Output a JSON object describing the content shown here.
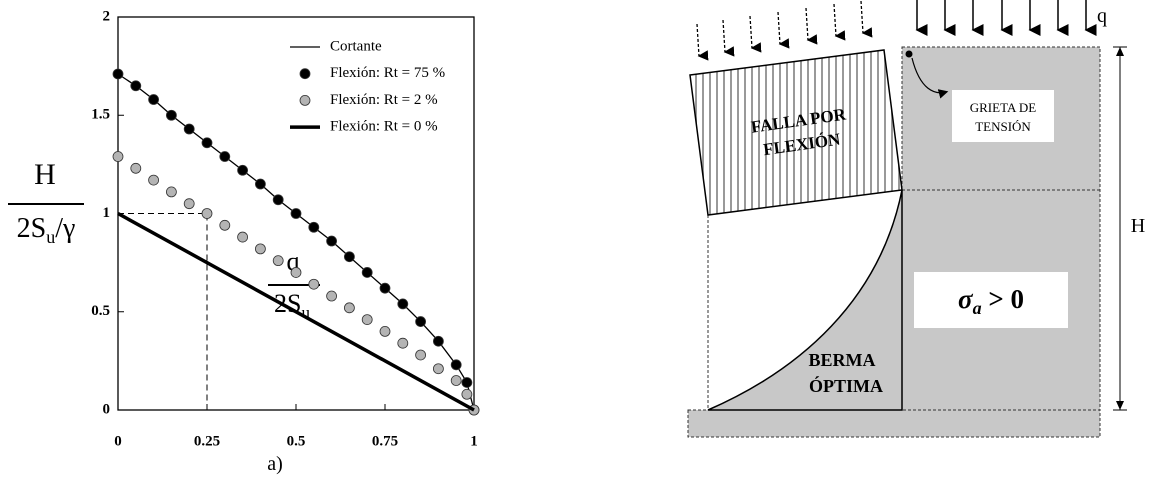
{
  "chart_data": {
    "type": "line",
    "caption": "a)",
    "y_label": {
      "numerator": "H",
      "denominator": "2S",
      "denominator_subscript": "u",
      "denominator_suffix": "/γ"
    },
    "x_label": {
      "numerator": "q",
      "denominator": "2S",
      "denominator_subscript": "u"
    },
    "xlim": [
      0,
      1
    ],
    "ylim": [
      0,
      2
    ],
    "xticks": [
      0,
      0.25,
      0.5,
      0.75,
      1
    ],
    "yticks": [
      0,
      0.5,
      1,
      1.5,
      2
    ],
    "reference_line": {
      "x": [
        0,
        0.25,
        0.25
      ],
      "values": [
        1,
        1,
        0
      ]
    },
    "series": [
      {
        "name": "Cortante",
        "color": "#000000",
        "marker": "none",
        "x": [
          0,
          0.05,
          0.1,
          0.15,
          0.2,
          0.25,
          0.3,
          0.35,
          0.4,
          0.45,
          0.5,
          0.55,
          0.6,
          0.65,
          0.7,
          0.75,
          0.8,
          0.85,
          0.9,
          0.95,
          0.98,
          1
        ],
        "values": [
          1.71,
          1.65,
          1.58,
          1.5,
          1.43,
          1.36,
          1.29,
          1.22,
          1.15,
          1.07,
          1.0,
          0.93,
          0.86,
          0.78,
          0.7,
          0.62,
          0.54,
          0.45,
          0.35,
          0.23,
          0.14,
          0
        ]
      },
      {
        "name": "Flexión: Rt = 75 %",
        "color": "#000000",
        "marker": "circle",
        "x": [
          0,
          0.05,
          0.1,
          0.15,
          0.2,
          0.25,
          0.3,
          0.35,
          0.4,
          0.45,
          0.5,
          0.55,
          0.6,
          0.65,
          0.7,
          0.75,
          0.8,
          0.85,
          0.9,
          0.95,
          0.98,
          1
        ],
        "values": [
          1.71,
          1.65,
          1.58,
          1.5,
          1.43,
          1.36,
          1.29,
          1.22,
          1.15,
          1.07,
          1.0,
          0.93,
          0.86,
          0.78,
          0.7,
          0.62,
          0.54,
          0.45,
          0.35,
          0.23,
          0.14,
          0
        ]
      },
      {
        "name": "Flexión: Rt = 2 %",
        "color": "#b4b4b4",
        "marker": "circle",
        "x": [
          0,
          0.05,
          0.1,
          0.15,
          0.2,
          0.25,
          0.3,
          0.35,
          0.4,
          0.45,
          0.5,
          0.55,
          0.6,
          0.65,
          0.7,
          0.75,
          0.8,
          0.85,
          0.9,
          0.95,
          0.98,
          1
        ],
        "values": [
          1.29,
          1.23,
          1.17,
          1.11,
          1.05,
          1.0,
          0.94,
          0.88,
          0.82,
          0.76,
          0.7,
          0.64,
          0.58,
          0.52,
          0.46,
          0.4,
          0.34,
          0.28,
          0.21,
          0.15,
          0.08,
          0
        ]
      },
      {
        "name": "Flexión: Rt = 0 %",
        "color": "#000000",
        "marker": "thick",
        "x": [
          0,
          1
        ],
        "values": [
          1,
          0
        ]
      }
    ]
  },
  "diagram": {
    "load": "q",
    "failure_block": [
      "FALLA POR",
      "FLEXIÓN"
    ],
    "crack": [
      "GRIETA DE",
      "TENSIÓN"
    ],
    "height": "H",
    "stress": {
      "symbol": "σ",
      "subscript": "a",
      "rest": " > 0"
    },
    "berm": [
      "BERMA",
      "ÓPTIMA"
    ]
  }
}
